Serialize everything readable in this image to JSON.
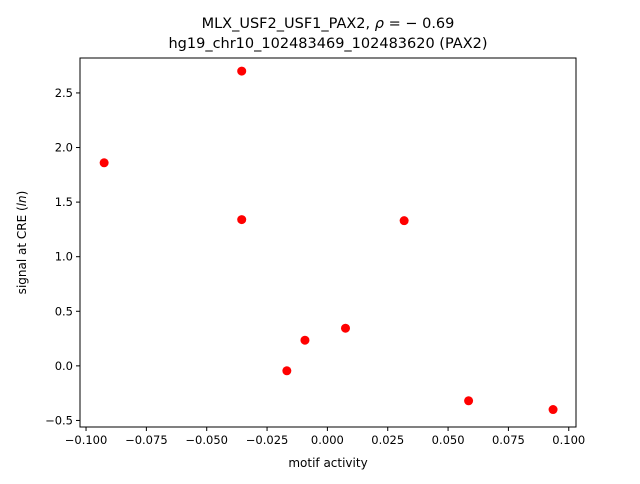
{
  "chart_data": {
    "type": "scatter",
    "title_line1_prefix": "MLX_USF2_USF1_PAX2, ",
    "title_line1_rho": "ρ",
    "title_line1_suffix": " = − 0.69",
    "title_line2": "hg19_chr10_102483469_102483620 (PAX2)",
    "xlabel": "motif activity",
    "ylabel_prefix": "signal at CRE (",
    "ylabel_italic": "ln",
    "ylabel_suffix": ")",
    "xlim": [
      -0.1025,
      0.103
    ],
    "ylim": [
      -0.56,
      2.82
    ],
    "xticks": [
      {
        "value": -0.1,
        "label": "−0.100"
      },
      {
        "value": -0.075,
        "label": "−0.075"
      },
      {
        "value": -0.05,
        "label": "−0.050"
      },
      {
        "value": -0.025,
        "label": "−0.025"
      },
      {
        "value": 0.0,
        "label": "0.000"
      },
      {
        "value": 0.025,
        "label": "0.025"
      },
      {
        "value": 0.05,
        "label": "0.050"
      },
      {
        "value": 0.075,
        "label": "0.075"
      },
      {
        "value": 0.1,
        "label": "0.100"
      }
    ],
    "yticks": [
      {
        "value": -0.5,
        "label": "−0.5"
      },
      {
        "value": 0.0,
        "label": "0.0"
      },
      {
        "value": 0.5,
        "label": "0.5"
      },
      {
        "value": 1.0,
        "label": "1.0"
      },
      {
        "value": 1.5,
        "label": "1.5"
      },
      {
        "value": 2.0,
        "label": "2.0"
      },
      {
        "value": 2.5,
        "label": "2.5"
      }
    ],
    "grid": false,
    "marker_color": "#ff0000",
    "points": [
      {
        "x": -0.0925,
        "y": 1.86
      },
      {
        "x": -0.0355,
        "y": 2.7
      },
      {
        "x": -0.0355,
        "y": 1.34
      },
      {
        "x": -0.0168,
        "y": -0.045
      },
      {
        "x": -0.0093,
        "y": 0.235
      },
      {
        "x": 0.0075,
        "y": 0.345
      },
      {
        "x": 0.0318,
        "y": 1.33
      },
      {
        "x": 0.0585,
        "y": -0.32
      },
      {
        "x": 0.0935,
        "y": -0.4
      }
    ]
  }
}
